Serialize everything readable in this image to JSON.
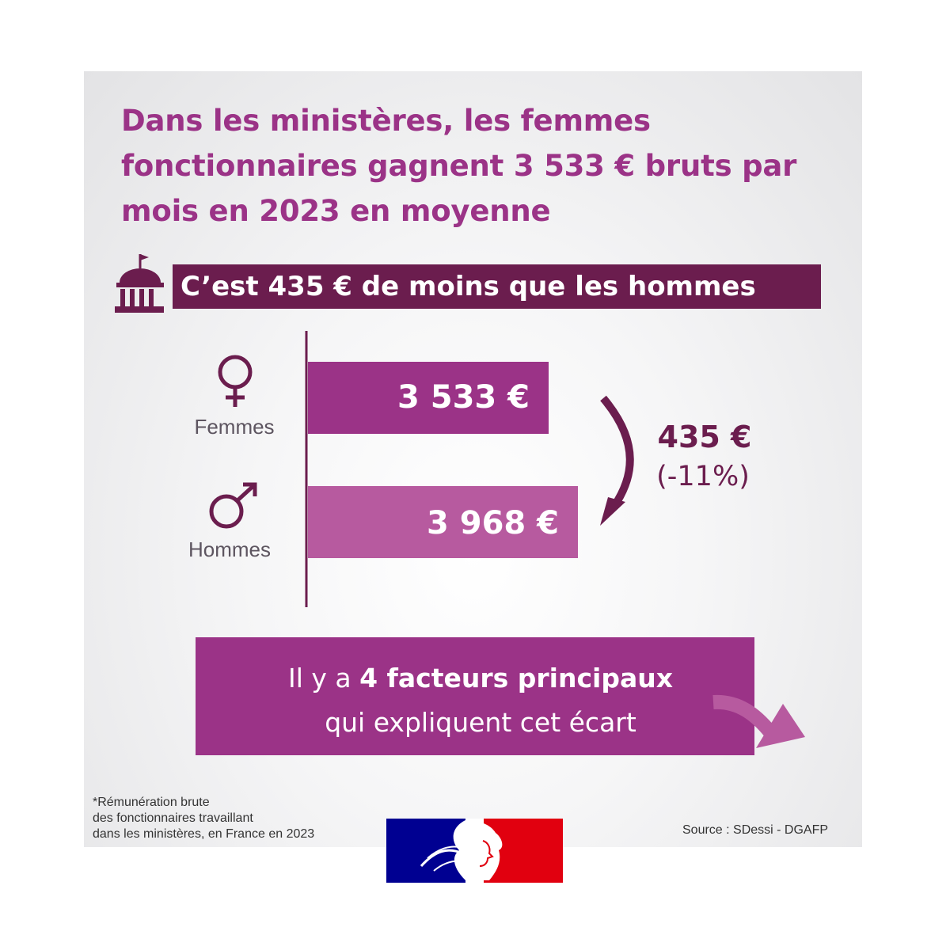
{
  "title": "Dans les ministères, les femmes fonctionnaires gagnent 3 533 € bruts par mois en 2023 en moyenne",
  "banner": "C’est 435 € de moins que les hommes",
  "colors": {
    "women": "#9b3387",
    "men": "#b75a9f",
    "dark": "#6b1d4e",
    "label": "#5d5560"
  },
  "icons": {
    "banner": "museum-icon",
    "women": "female-symbol-icon",
    "men": "male-symbol-icon",
    "gap": "curved-arrow-down-icon"
  },
  "chart_data": {
    "type": "bar",
    "orientation": "horizontal",
    "categories": [
      "Femmes",
      "Hommes"
    ],
    "values": [
      3533,
      3968
    ],
    "value_labels": [
      "3 533 €",
      "3 968 €"
    ],
    "difference": {
      "label": "435 €",
      "percent": "(-11%)"
    }
  },
  "cta": {
    "before": "Il y a ",
    "bold": "4 facteurs principaux",
    "line2": "qui expliquent cet écart"
  },
  "footnote": [
    "*Rémunération brute",
    "des fonctionnaires travaillant",
    "dans les ministères, en France en 2023"
  ],
  "source": "Source : SDessi - DGAFP"
}
